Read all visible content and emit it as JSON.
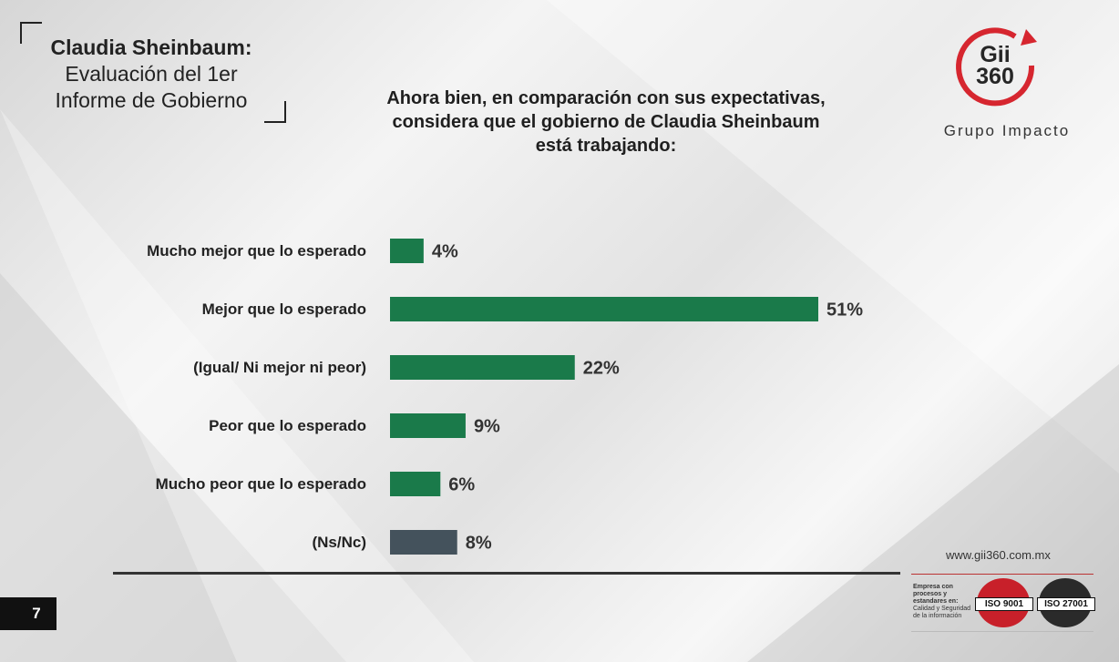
{
  "deck": {
    "title_bold": "Claudia Sheinbaum:",
    "title_line2": "Evaluación del 1er",
    "title_line3": "Informe de Gobierno"
  },
  "question": {
    "line1": "Ahora bien, en comparación con sus expectativas,",
    "line2": "considera que el gobierno de Claudia Sheinbaum",
    "line3": "está trabajando:"
  },
  "logo": {
    "line1": "Gii",
    "line2": "360",
    "tagline": "Grupo Impacto",
    "ring_color": "#d6262f"
  },
  "chart_data": {
    "type": "bar",
    "orientation": "horizontal",
    "categories": [
      "Mucho mejor que lo esperado",
      "Mejor que lo esperado",
      "(Igual/ Ni mejor ni peor)",
      "Peor que lo esperado",
      "Mucho peor que lo esperado",
      "(Ns/Nc)"
    ],
    "values": [
      4,
      51,
      22,
      9,
      6,
      8
    ],
    "value_labels": [
      "4%",
      "51%",
      "22%",
      "9%",
      "6%",
      "8%"
    ],
    "colors": [
      "#1a7a4a",
      "#1a7a4a",
      "#1a7a4a",
      "#1a7a4a",
      "#1a7a4a",
      "#44525c"
    ],
    "xlim": [
      0,
      51
    ],
    "grid": false,
    "legend": "none"
  },
  "footer": {
    "url": "www.gii360.com.mx",
    "cert_bold": "Empresa con procesos y estandares en:",
    "cert_text": "Calidad y Seguridad de la información",
    "seal1": "ISO 9001",
    "seal2": "ISO 27001",
    "page_number": "7"
  }
}
